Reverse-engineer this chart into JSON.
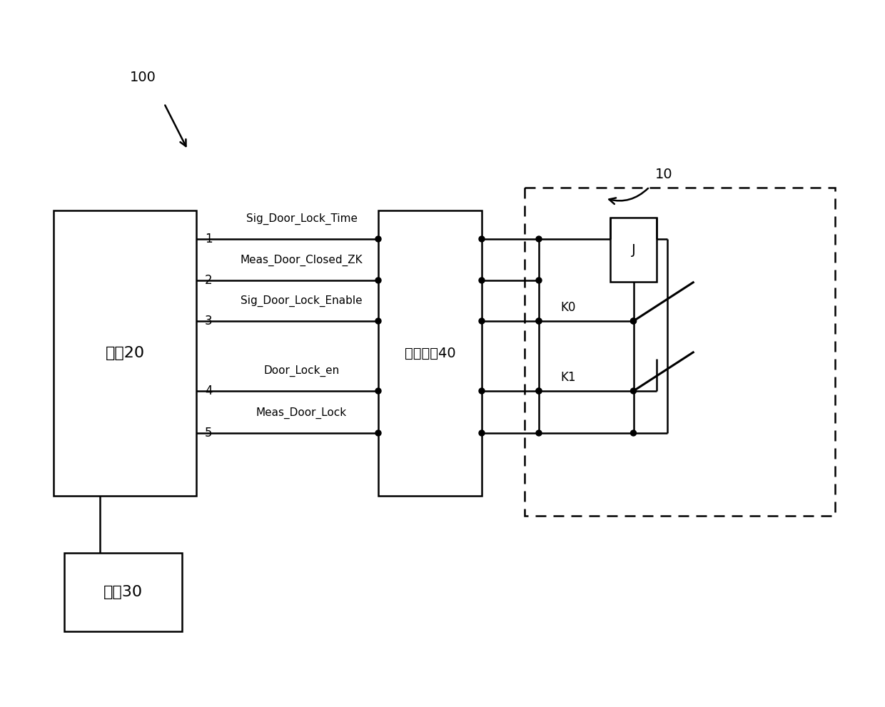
{
  "bg_color": "#ffffff",
  "figsize": [
    12.4,
    9.91
  ],
  "dpi": 100,
  "title_100": "100",
  "title_10": "10",
  "controller_label": "控制20",
  "selftest_label": "自棈电路40",
  "power_label": "电渰30",
  "J_label": "J",
  "K0_label": "K0",
  "K1_label": "K1",
  "signals": [
    {
      "pin": "1",
      "label": "Sig_Door_Lock_Time"
    },
    {
      "pin": "2",
      "label": "Meas_Door_Closed_ZK"
    },
    {
      "pin": "3",
      "label": "Sig_Door_Lock_Enable"
    },
    {
      "pin": "4",
      "label": "Door_Lock_en"
    },
    {
      "pin": "5",
      "label": "Meas_Door_Lock"
    }
  ]
}
